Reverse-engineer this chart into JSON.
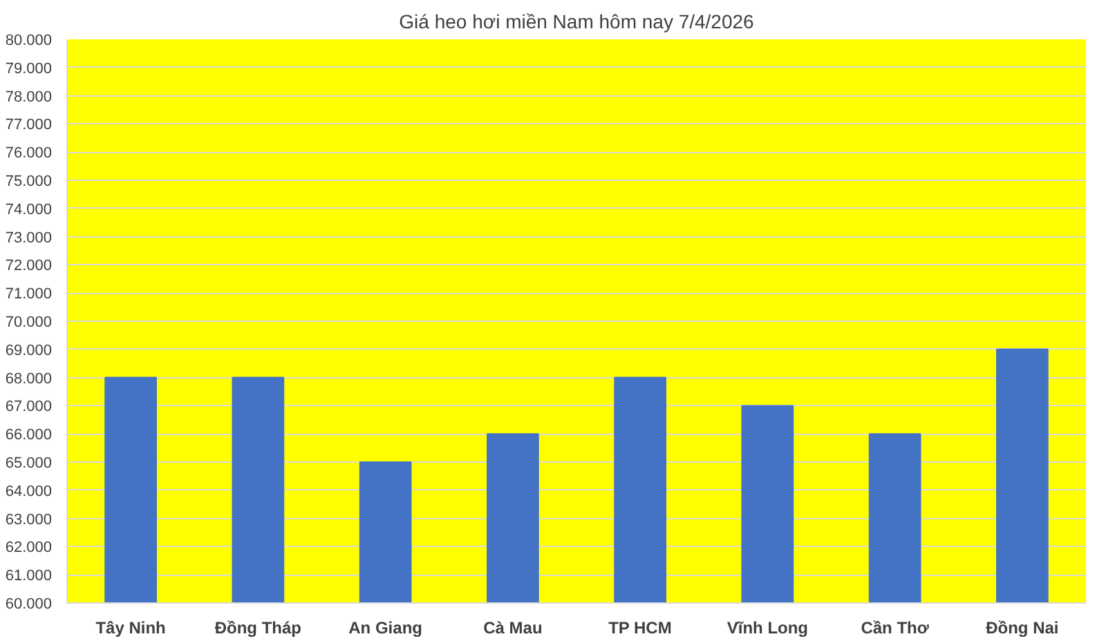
{
  "chart_data": {
    "type": "bar",
    "title": "Giá heo hơi miền Nam hôm nay 7/4/2026",
    "categories": [
      "Tây Ninh",
      "Đồng Tháp",
      "An Giang",
      "Cà Mau",
      "TP HCM",
      "Vĩnh Long",
      "Cần Thơ",
      "Đồng Nai"
    ],
    "values": [
      68000,
      68000,
      65000,
      66000,
      68000,
      67000,
      66000,
      69000
    ],
    "color": "#4472c4",
    "ylim": [
      60000,
      80000
    ],
    "yticks": [
      {
        "value": 60000,
        "label": "60.000"
      },
      {
        "value": 61000,
        "label": "61.000"
      },
      {
        "value": 62000,
        "label": "62.000"
      },
      {
        "value": 63000,
        "label": "63.000"
      },
      {
        "value": 64000,
        "label": "64.000"
      },
      {
        "value": 65000,
        "label": "65.000"
      },
      {
        "value": 66000,
        "label": "66.000"
      },
      {
        "value": 67000,
        "label": "67.000"
      },
      {
        "value": 68000,
        "label": "68.000"
      },
      {
        "value": 69000,
        "label": "69.000"
      },
      {
        "value": 70000,
        "label": "70.000"
      },
      {
        "value": 71000,
        "label": "71.000"
      },
      {
        "value": 72000,
        "label": "72.000"
      },
      {
        "value": 73000,
        "label": "73.000"
      },
      {
        "value": 74000,
        "label": "74.000"
      },
      {
        "value": 75000,
        "label": "75.000"
      },
      {
        "value": 76000,
        "label": "76.000"
      },
      {
        "value": 77000,
        "label": "77.000"
      },
      {
        "value": 78000,
        "label": "78.000"
      },
      {
        "value": 79000,
        "label": "79.000"
      },
      {
        "value": 80000,
        "label": "80.000"
      }
    ],
    "grid": "y"
  }
}
